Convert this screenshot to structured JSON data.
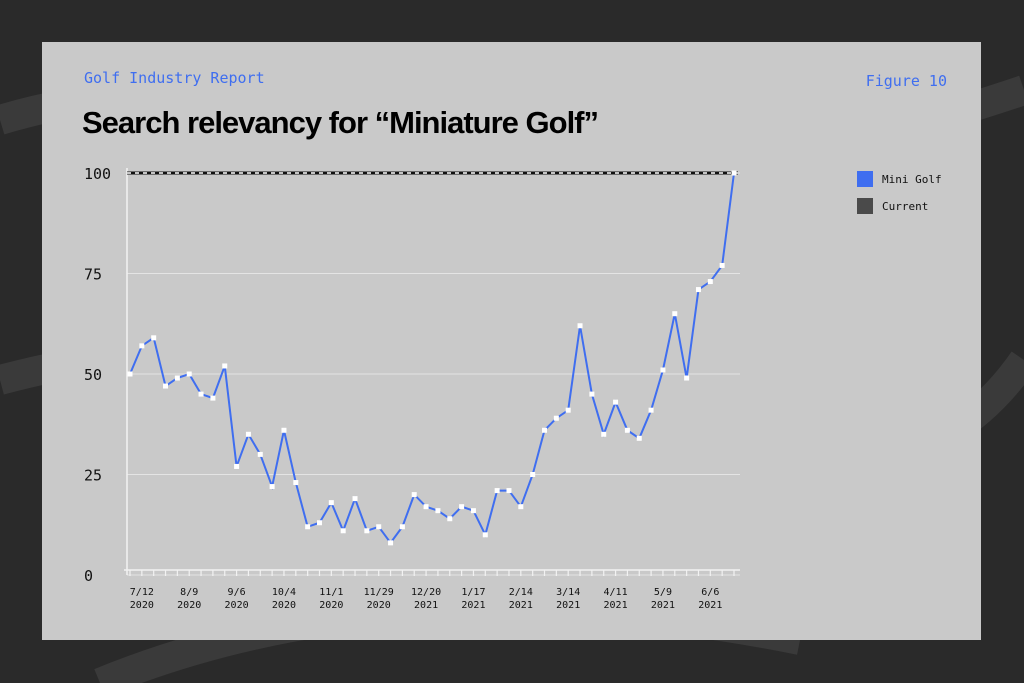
{
  "chart_data": {
    "type": "line",
    "header": "Golf Industry Report",
    "figure_label": "Figure 10",
    "title": "Search relevancy for “Miniature Golf”",
    "categories": [
      null,
      "7/12\n2020",
      null,
      null,
      null,
      "8/9\n2020",
      null,
      null,
      null,
      "9/6\n2020",
      null,
      null,
      null,
      "10/4\n2020",
      null,
      null,
      null,
      "11/1\n2020",
      null,
      null,
      null,
      "11/29\n2020",
      null,
      null,
      null,
      "12/20\n2021",
      null,
      null,
      null,
      "1/17\n2021",
      null,
      null,
      null,
      "2/14\n2021",
      null,
      null,
      null,
      "3/14\n2021",
      null,
      null,
      null,
      "4/11\n2021",
      null,
      null,
      null,
      "5/9\n2021",
      null,
      null,
      null,
      "6/6\n2021",
      null,
      null
    ],
    "series": [
      {
        "name": "Mini Golf",
        "color": "#3f6ef0",
        "values": [
          50,
          57,
          59,
          47,
          49,
          50,
          45,
          44,
          52,
          27,
          35,
          30,
          22,
          36,
          23,
          12,
          13,
          18,
          11,
          19,
          11,
          12,
          8,
          12,
          20,
          17,
          16,
          14,
          17,
          16,
          10,
          21,
          21,
          17,
          25,
          36,
          39,
          41,
          62,
          45,
          35,
          43,
          36,
          34,
          41,
          51,
          65,
          49,
          71,
          73,
          77,
          100
        ]
      }
    ],
    "reference_line": {
      "name": "Current",
      "value": 100,
      "color": "#4a4a4a"
    },
    "ylim": [
      0,
      100
    ],
    "yticks": [
      0,
      25,
      50,
      75,
      100
    ],
    "grid": true
  }
}
